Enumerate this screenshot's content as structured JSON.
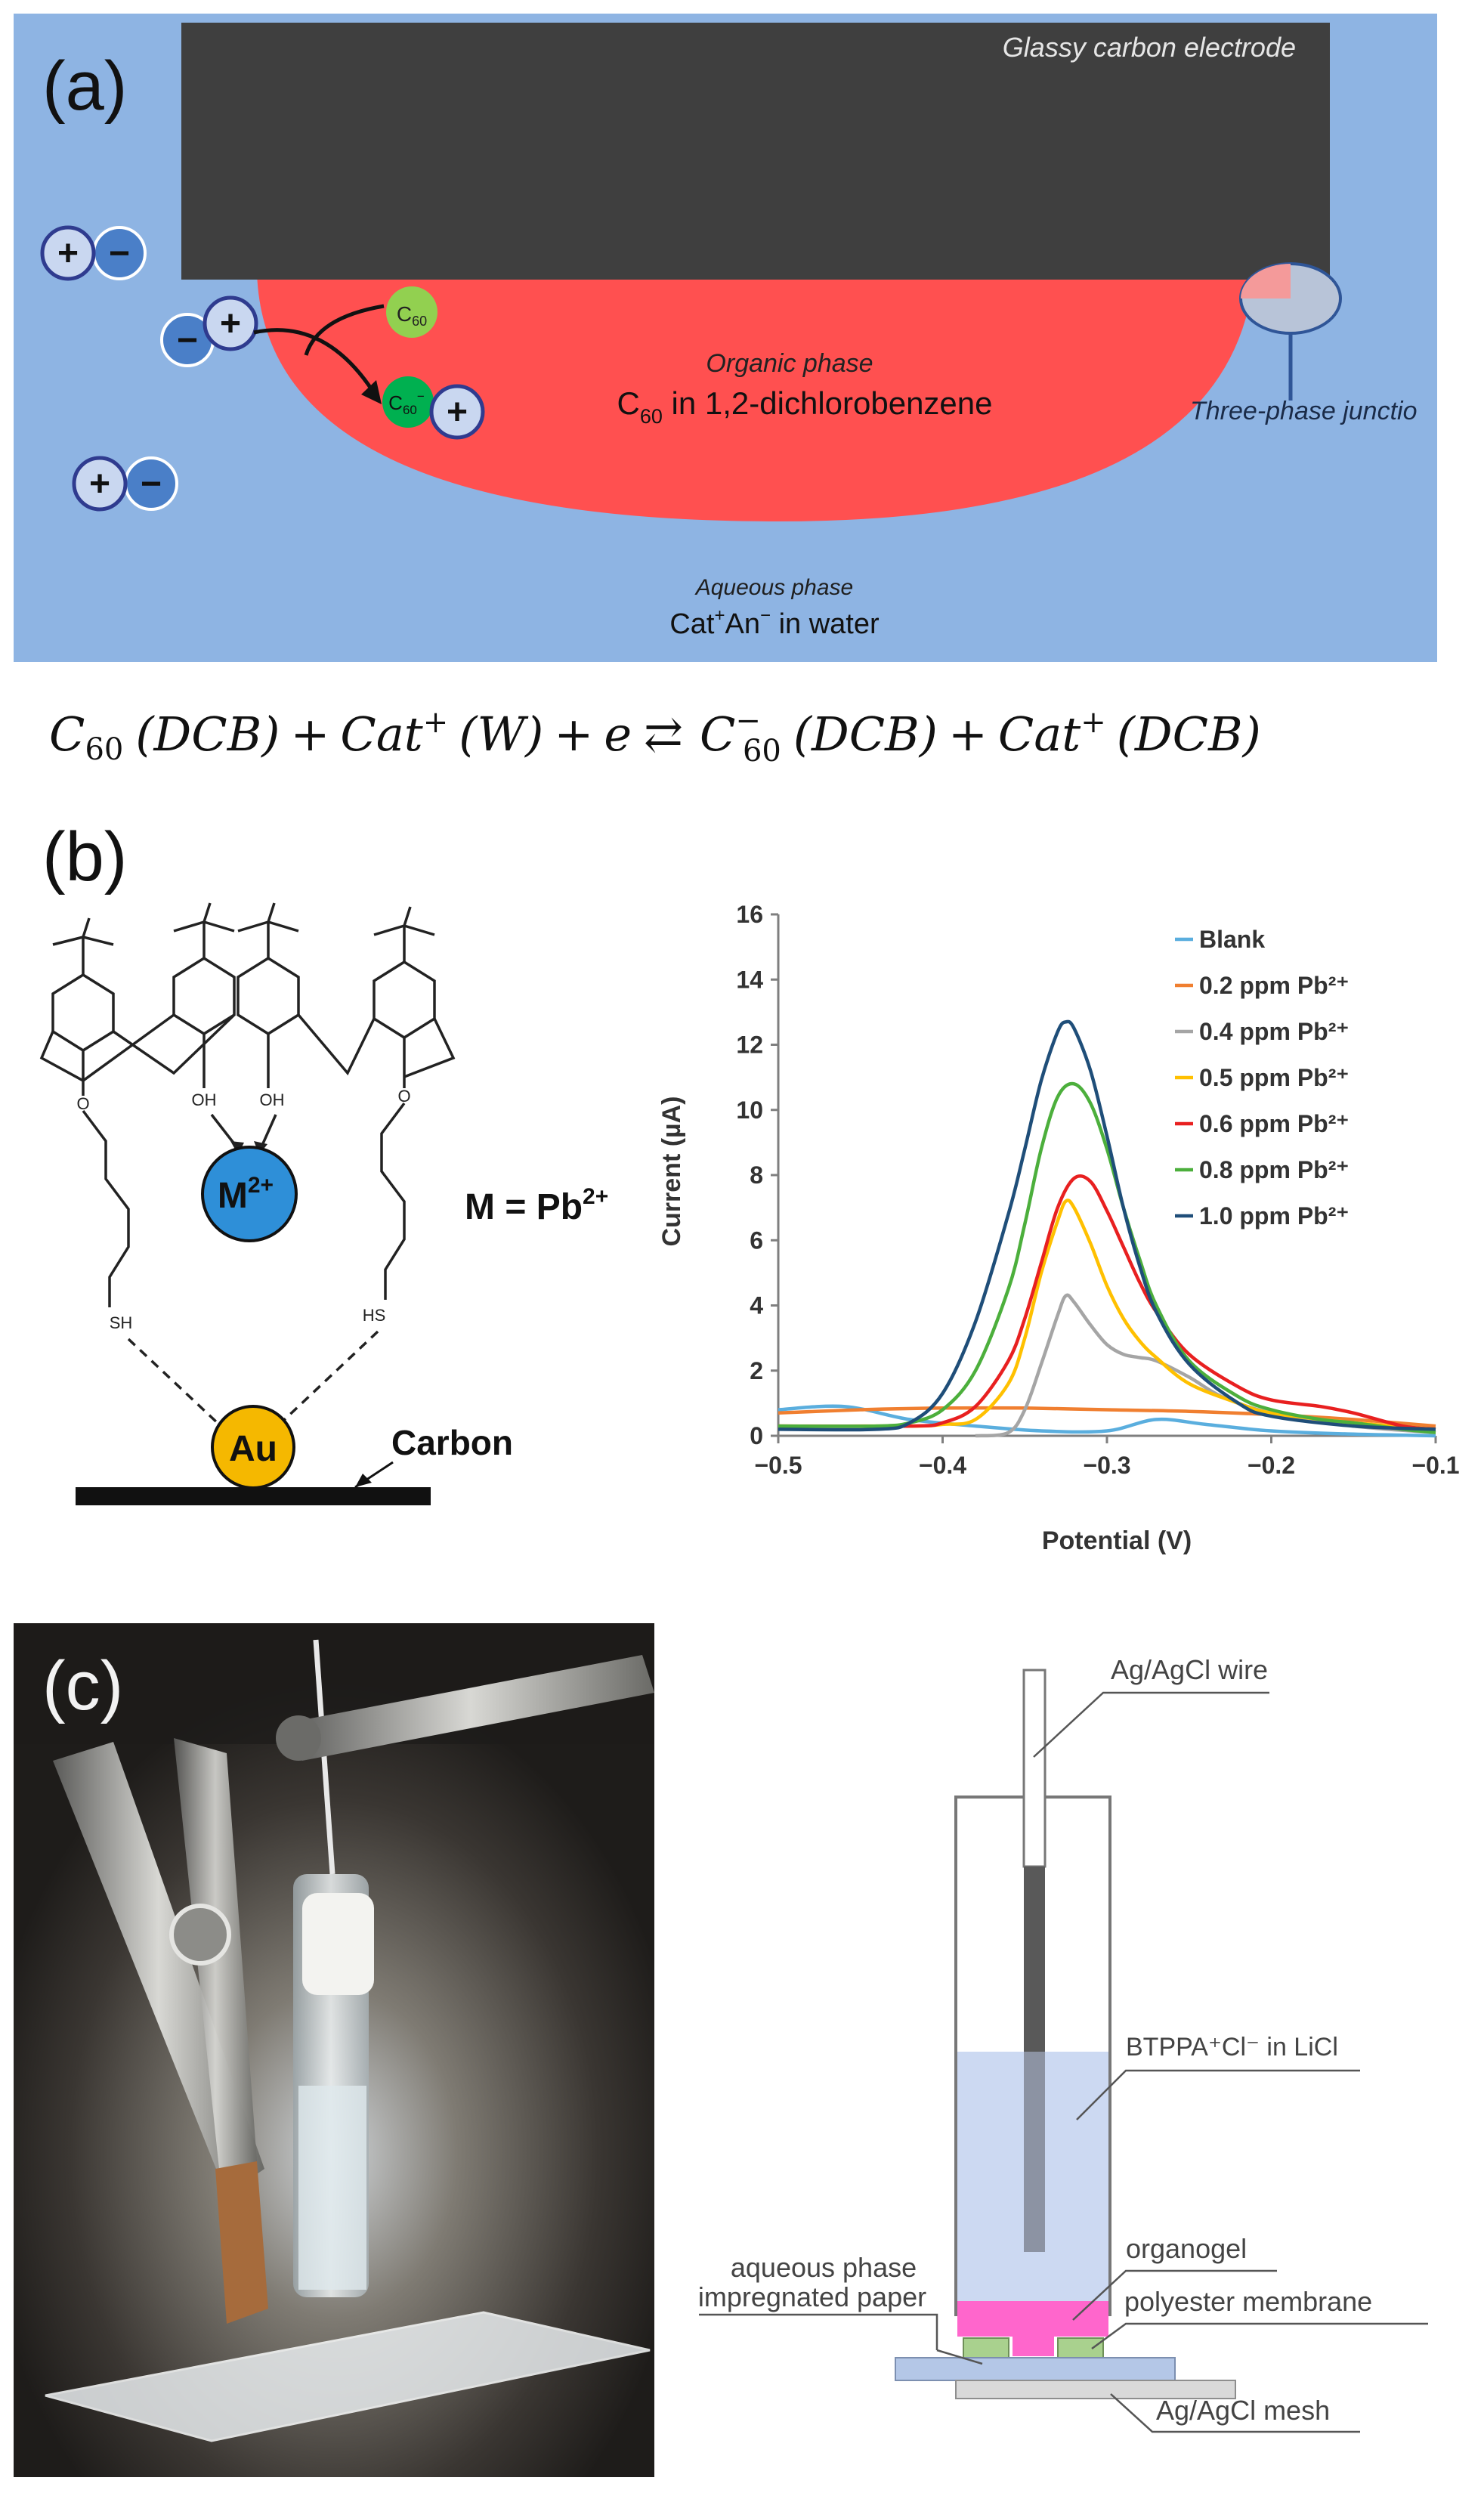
{
  "panel_a": {
    "label": "(a)",
    "electrode": "Glassy carbon electrode",
    "organic_phase_title": "Organic phase",
    "organic_phase_prefix": "C",
    "organic_phase_sub": "60",
    "organic_phase_rest": " in 1,2-dichlorobenzene",
    "junction_label": "Three-phase junctio",
    "aqueous_title": "Aqueous phase",
    "aqueous_cat": "Cat",
    "aqueous_plus": "+",
    "aqueous_an": "An",
    "aqueous_minus": "−",
    "aqueous_rest": " in water",
    "c60": "C",
    "c60_sub": "60",
    "c60_minus": "−",
    "plus": "+",
    "minus": "−"
  },
  "equation": {
    "lhs": "C60 (DCB) + Cat+ (W) + e",
    "arrow": "⇄",
    "rhs": "C60− (DCB) + Cat+ (DCB)",
    "c": "C",
    "sixty": "60",
    "dcb": "(DCB)",
    "cat": "Cat",
    "w": "(W)",
    "e": "e",
    "plus_op": "+",
    "sup_plus": "+",
    "sup_minus": "−"
  },
  "panel_b": {
    "label": "(b)",
    "metal_ion": "M",
    "metal_charge": "2+",
    "gold": "Au",
    "carbon": "Carbon",
    "m_equals": "M = Pb",
    "m_equals_charge": "2+",
    "oh": "OH",
    "o": "O",
    "sh": "SH",
    "hs": "HS"
  },
  "panel_c": {
    "label": "(c)",
    "wire": "Ag/AgCl wire",
    "solution": "BTPPA⁺Cl⁻ in LiCl",
    "organogel": "organogel",
    "aqueous_line1": "aqueous phase",
    "aqueous_line2": "impregnated paper",
    "membrane": "polyester membrane",
    "mesh": "Ag/AgCl mesh"
  },
  "colors": {
    "aqueous": "#8eb4e3",
    "electrode": "#3f3f3f",
    "organic": "#ff5050",
    "c60": "#92d050",
    "c60_reduced": "#00b050",
    "cation": "#c9d7f0",
    "anion": "#4a7fc8",
    "metal": "#2e8fd8",
    "gold": "#f5b800",
    "gel": "#ff66cc",
    "membrane": "#a9d18e",
    "solution": "#ccd9f2",
    "mesh": "#d9d9d9",
    "base": "#b4c7e7"
  },
  "chart_data": {
    "type": "line",
    "xlabel": "Potential (V)",
    "ylabel": "Current (µA)",
    "xlim": [
      -0.5,
      -0.1
    ],
    "ylim": [
      0,
      16
    ],
    "x_ticks": [
      "−0.5",
      "−0.4",
      "−0.3",
      "−0.2",
      "−0.1"
    ],
    "x_tick_values": [
      -0.5,
      -0.4,
      -0.3,
      -0.2,
      -0.1
    ],
    "y_ticks": [
      "0",
      "2",
      "4",
      "6",
      "8",
      "10",
      "12",
      "14",
      "16"
    ],
    "y_tick_values": [
      0,
      2,
      4,
      6,
      8,
      10,
      12,
      14,
      16
    ],
    "grid": false,
    "legend_position": "top-right",
    "series": [
      {
        "name": "Blank",
        "color": "#5aaede",
        "x": [
          -0.5,
          -0.46,
          -0.42,
          -0.38,
          -0.34,
          -0.3,
          -0.27,
          -0.24,
          -0.2,
          -0.15,
          -0.1
        ],
        "y": [
          0.8,
          0.9,
          0.5,
          0.3,
          0.15,
          0.15,
          0.5,
          0.35,
          0.15,
          0.05,
          0.0
        ]
      },
      {
        "name": "0.2 ppm Pb²⁺",
        "color": "#f07f30",
        "x": [
          -0.5,
          -0.45,
          -0.4,
          -0.35,
          -0.3,
          -0.25,
          -0.2,
          -0.15,
          -0.1
        ],
        "y": [
          0.7,
          0.8,
          0.85,
          0.85,
          0.8,
          0.75,
          0.65,
          0.5,
          0.3
        ]
      },
      {
        "name": "0.4 ppm Pb²⁺",
        "color": "#a5a5a5",
        "x": [
          -0.38,
          -0.36,
          -0.35,
          -0.34,
          -0.33,
          -0.325,
          -0.32,
          -0.31,
          -0.3,
          -0.29,
          -0.28,
          -0.27,
          -0.25,
          -0.23,
          -0.2,
          -0.15,
          -0.1
        ],
        "y": [
          0,
          0.1,
          0.8,
          2.2,
          3.7,
          4.3,
          4.1,
          3.4,
          2.8,
          2.5,
          2.4,
          2.3,
          1.8,
          1.2,
          0.7,
          0.3,
          0.1
        ]
      },
      {
        "name": "0.5 ppm Pb²⁺",
        "color": "#ffc000",
        "x": [
          -0.5,
          -0.42,
          -0.4,
          -0.38,
          -0.36,
          -0.35,
          -0.34,
          -0.33,
          -0.325,
          -0.32,
          -0.31,
          -0.3,
          -0.29,
          -0.28,
          -0.27,
          -0.25,
          -0.22,
          -0.2,
          -0.15,
          -0.1
        ],
        "y": [
          0.3,
          0.3,
          0.35,
          0.5,
          1.6,
          3.0,
          5.0,
          6.6,
          7.2,
          7.0,
          5.9,
          4.6,
          3.6,
          2.9,
          2.4,
          1.6,
          1.0,
          0.7,
          0.4,
          0.2
        ]
      },
      {
        "name": "0.6 ppm Pb²⁺",
        "color": "#e82020",
        "x": [
          -0.5,
          -0.42,
          -0.4,
          -0.38,
          -0.36,
          -0.35,
          -0.34,
          -0.33,
          -0.32,
          -0.31,
          -0.3,
          -0.29,
          -0.28,
          -0.27,
          -0.25,
          -0.22,
          -0.2,
          -0.17,
          -0.15,
          -0.12,
          -0.1
        ],
        "y": [
          0.3,
          0.3,
          0.4,
          0.9,
          2.3,
          3.6,
          5.3,
          7.0,
          7.9,
          7.8,
          6.9,
          5.8,
          4.7,
          3.8,
          2.5,
          1.5,
          1.1,
          0.9,
          0.7,
          0.3,
          0.2
        ]
      },
      {
        "name": "0.8 ppm Pb²⁺",
        "color": "#4caf3c",
        "x": [
          -0.5,
          -0.44,
          -0.42,
          -0.4,
          -0.38,
          -0.36,
          -0.35,
          -0.34,
          -0.33,
          -0.32,
          -0.31,
          -0.3,
          -0.29,
          -0.28,
          -0.27,
          -0.25,
          -0.22,
          -0.2,
          -0.17,
          -0.15,
          -0.12,
          -0.1
        ],
        "y": [
          0.3,
          0.3,
          0.4,
          0.8,
          2.0,
          4.5,
          6.5,
          8.8,
          10.4,
          10.8,
          10.2,
          8.8,
          7.0,
          5.4,
          4.0,
          2.3,
          1.2,
          0.8,
          0.5,
          0.4,
          0.2,
          0.1
        ]
      },
      {
        "name": "1.0 ppm Pb²⁺",
        "color": "#1f4e79",
        "x": [
          -0.5,
          -0.44,
          -0.42,
          -0.4,
          -0.38,
          -0.36,
          -0.35,
          -0.34,
          -0.33,
          -0.325,
          -0.32,
          -0.31,
          -0.3,
          -0.29,
          -0.28,
          -0.27,
          -0.25,
          -0.22,
          -0.2,
          -0.15,
          -0.1
        ],
        "y": [
          0.2,
          0.2,
          0.4,
          1.3,
          3.5,
          6.8,
          8.8,
          10.9,
          12.4,
          12.7,
          12.5,
          11.2,
          9.2,
          7.0,
          5.2,
          3.8,
          2.2,
          1.0,
          0.6,
          0.3,
          0.2
        ]
      }
    ]
  }
}
